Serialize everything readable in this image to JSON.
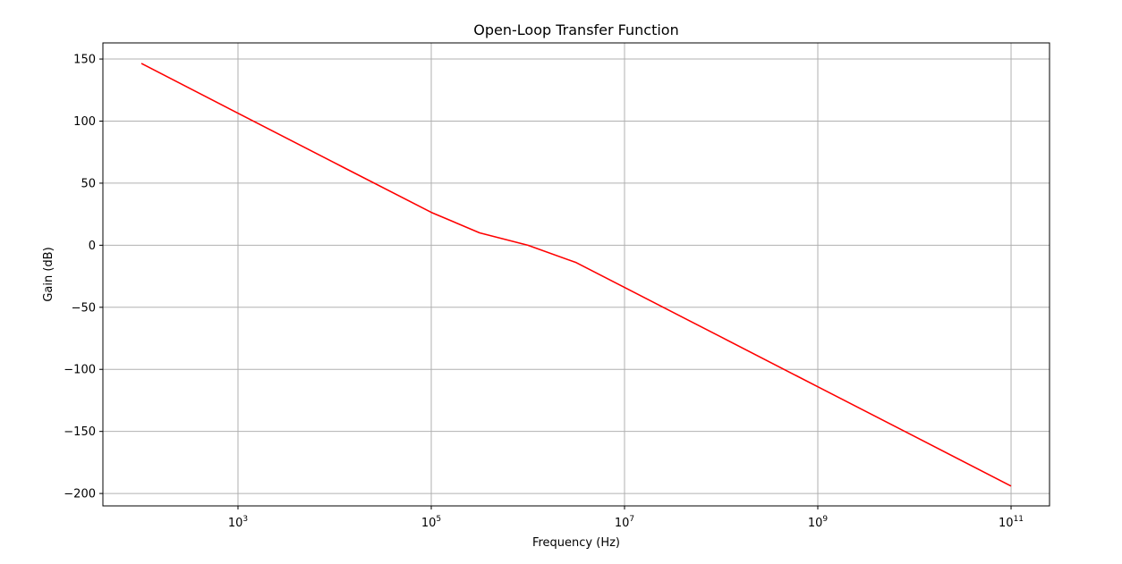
{
  "chart_data": {
    "type": "line",
    "title": "Open-Loop Transfer Function",
    "xlabel": "Frequency (Hz)",
    "ylabel": "Gain (dB)",
    "x_scale": "log",
    "xlim": [
      40,
      250000000000
    ],
    "ylim": [
      -210,
      163
    ],
    "grid": true,
    "x_ticks": [
      {
        "value": 1000,
        "base": "10",
        "exp": "3"
      },
      {
        "value": 100000,
        "base": "10",
        "exp": "5"
      },
      {
        "value": 10000000,
        "base": "10",
        "exp": "7"
      },
      {
        "value": 1000000000,
        "base": "10",
        "exp": "9"
      },
      {
        "value": 100000000000,
        "base": "10",
        "exp": "11"
      }
    ],
    "y_ticks": [
      {
        "value": 150,
        "label": "150"
      },
      {
        "value": 100,
        "label": "100"
      },
      {
        "value": 50,
        "label": "50"
      },
      {
        "value": 0,
        "label": "0"
      },
      {
        "value": -50,
        "label": "−50"
      },
      {
        "value": -100,
        "label": "−100"
      },
      {
        "value": -150,
        "label": "−150"
      },
      {
        "value": -200,
        "label": "−200"
      }
    ],
    "series": [
      {
        "color": "#ff0000",
        "x": [
          100,
          1000,
          10000,
          100000,
          316228,
          1000000,
          3162278,
          10000000,
          100000000,
          1000000000,
          10000000000,
          100000000000
        ],
        "y": [
          146.5,
          106.3,
          66.4,
          26.5,
          10.0,
          0.0,
          -14.0,
          -34.0,
          -74.0,
          -114.0,
          -154.0,
          -194.0
        ]
      }
    ]
  }
}
